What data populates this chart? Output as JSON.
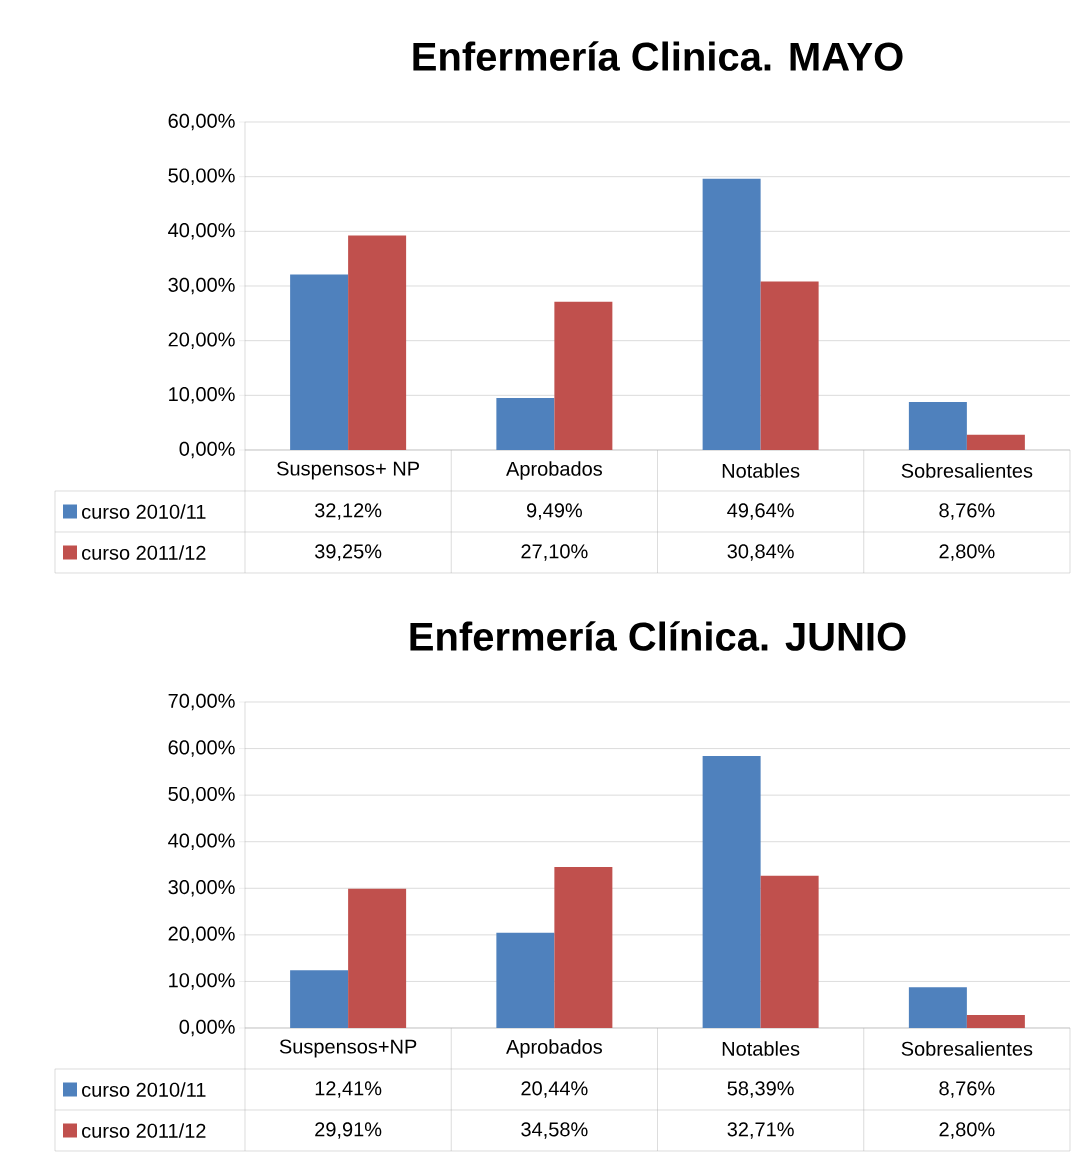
{
  "chart_data": [
    {
      "type": "bar",
      "title": "Enfermería Clinica. MAYO",
      "categories": [
        "Suspensos+ NP",
        "Aprobados",
        "Notables",
        "Sobresalientes"
      ],
      "series": [
        {
          "name": "curso 2010/11",
          "color": "#4f81bd",
          "values": [
            32.12,
            9.49,
            49.64,
            8.76
          ],
          "value_labels": [
            "32,12%",
            "9,49%",
            "49,64%",
            "8,76%"
          ]
        },
        {
          "name": "curso 2011/12",
          "color": "#c0504d",
          "values": [
            39.25,
            27.1,
            30.84,
            2.8
          ],
          "value_labels": [
            "39,25%",
            "27,10%",
            "30,84%",
            "2,80%"
          ]
        }
      ],
      "ylim": [
        0,
        60
      ],
      "yticks": [
        {
          "value": 0,
          "label": "0,00%"
        },
        {
          "value": 10,
          "label": "10,00%"
        },
        {
          "value": 20,
          "label": "20,00%"
        },
        {
          "value": 30,
          "label": "30,00%"
        },
        {
          "value": 40,
          "label": "40,00%"
        },
        {
          "value": 50,
          "label": "50,00%"
        },
        {
          "value": 60,
          "label": "60,00%"
        }
      ],
      "grid": "y",
      "legend": "left"
    },
    {
      "type": "bar",
      "title": "Enfermería Clínica. JUNIO",
      "categories": [
        "Suspensos+NP",
        "Aprobados",
        "Notables",
        "Sobresalientes"
      ],
      "series": [
        {
          "name": "curso 2010/11",
          "color": "#4f81bd",
          "values": [
            12.41,
            20.44,
            58.39,
            8.76
          ],
          "value_labels": [
            "12,41%",
            "20,44%",
            "58,39%",
            "8,76%"
          ]
        },
        {
          "name": "curso 2011/12",
          "color": "#c0504d",
          "values": [
            29.91,
            34.58,
            32.71,
            2.8
          ],
          "value_labels": [
            "29,91%",
            "34,58%",
            "32,71%",
            "2,80%"
          ]
        }
      ],
      "ylim": [
        0,
        70
      ],
      "yticks": [
        {
          "value": 0,
          "label": "0,00%"
        },
        {
          "value": 10,
          "label": "10,00%"
        },
        {
          "value": 20,
          "label": "20,00%"
        },
        {
          "value": 30,
          "label": "30,00%"
        },
        {
          "value": 40,
          "label": "40,00%"
        },
        {
          "value": 50,
          "label": "50,00%"
        },
        {
          "value": 60,
          "label": "60,00%"
        },
        {
          "value": 70,
          "label": "70,00%"
        }
      ],
      "grid": "y",
      "legend": "left"
    }
  ]
}
